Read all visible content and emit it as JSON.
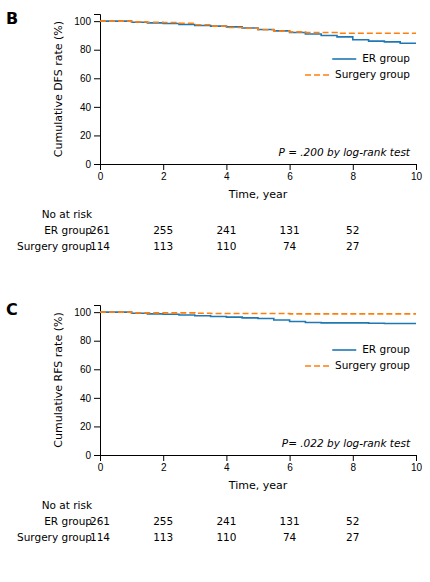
{
  "chart_data": [
    {
      "type": "line",
      "title": "B",
      "ylabel": "Cumulative DFS rate (%)",
      "xlabel": "Time, year",
      "annotations": [
        {
          "text": "P = .200 by log-rank test"
        }
      ],
      "x": [
        0,
        1,
        1.5,
        2,
        2.5,
        3,
        3.5,
        4,
        4.5,
        5,
        5.5,
        6,
        6.5,
        7,
        7.5,
        8,
        8.5,
        9,
        9.5,
        10
      ],
      "series": [
        {
          "name": "ER group",
          "line_style": "solid",
          "values": [
            100,
            99.2,
            98.8,
            98.4,
            97.6,
            97.0,
            96.5,
            96.0,
            95.2,
            94.2,
            93.2,
            92.0,
            91.0,
            90.0,
            89.0,
            87.0,
            86.0,
            85.5,
            84.5,
            84.5
          ]
        },
        {
          "name": "Surgery group",
          "line_style": "dashed",
          "values": [
            100,
            99.5,
            99.2,
            99.0,
            98.5,
            97.5,
            96.5,
            95.5,
            95.0,
            94.0,
            93.0,
            92.5,
            92.0,
            92.0,
            91.5,
            91.5,
            91.5,
            91.5,
            91.5,
            91.5
          ]
        }
      ],
      "at_risk": {
        "label": "No at risk",
        "x": [
          0,
          2,
          4,
          6,
          8
        ],
        "rows": [
          {
            "name": "ER group",
            "values": [
              261,
              255,
              241,
              131,
              52
            ]
          },
          {
            "name": "Surgery group",
            "values": [
              114,
              113,
              110,
              74,
              27
            ]
          }
        ]
      },
      "xlim": [
        0,
        10
      ],
      "ylim": [
        0,
        105
      ],
      "xticks": [
        0,
        2,
        4,
        6,
        8,
        10
      ],
      "yticks": [
        0,
        20,
        40,
        60,
        80,
        100
      ],
      "legend": "right",
      "grid": false
    },
    {
      "type": "line",
      "title": "C",
      "ylabel": "Cumulative RFS rate (%)",
      "xlabel": "Time, year",
      "annotations": [
        {
          "text": "P= .022 by log-rank test"
        }
      ],
      "x": [
        0,
        1,
        1.5,
        2,
        2.5,
        3,
        3.5,
        4,
        4.5,
        5,
        5.5,
        6,
        6.5,
        7,
        7.5,
        8,
        8.5,
        9,
        9.5,
        10
      ],
      "series": [
        {
          "name": "ER group",
          "line_style": "solid",
          "values": [
            100,
            99.2,
            98.8,
            98.5,
            98.0,
            97.5,
            97.0,
            96.5,
            96.0,
            95.5,
            94.5,
            93.5,
            92.8,
            92.5,
            92.5,
            92.5,
            92.2,
            92.0,
            92.0,
            92.0
          ]
        },
        {
          "name": "Surgery group",
          "line_style": "dashed",
          "values": [
            100,
            99.5,
            99.5,
            99.5,
            99.5,
            99.2,
            99.0,
            99.0,
            99.0,
            99.0,
            99.0,
            98.8,
            98.8,
            98.8,
            98.8,
            98.8,
            98.8,
            98.8,
            98.8,
            98.8
          ]
        }
      ],
      "at_risk": {
        "label": "No at risk",
        "x": [
          0,
          2,
          4,
          6,
          8
        ],
        "rows": [
          {
            "name": "ER group",
            "values": [
              261,
              255,
              241,
              131,
              52
            ]
          },
          {
            "name": "Surgery group",
            "values": [
              114,
              113,
              110,
              74,
              27
            ]
          }
        ]
      },
      "xlim": [
        0,
        10
      ],
      "ylim": [
        0,
        105
      ],
      "xticks": [
        0,
        2,
        4,
        6,
        8,
        10
      ],
      "yticks": [
        0,
        20,
        40,
        60,
        80,
        100
      ],
      "legend": "right",
      "grid": false
    }
  ]
}
